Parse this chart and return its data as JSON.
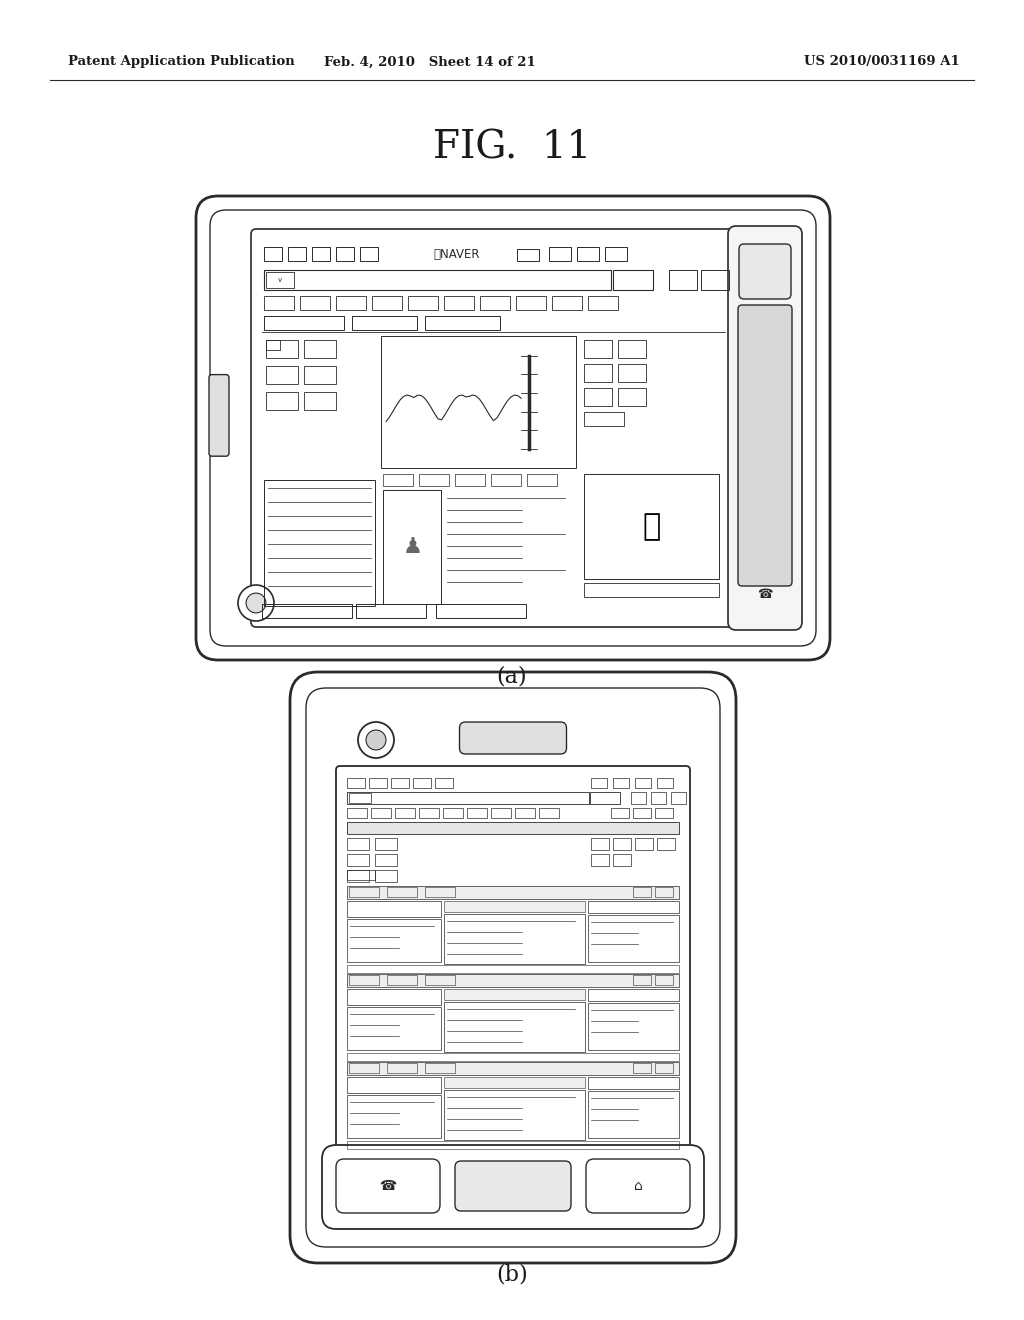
{
  "bg_color": "#ffffff",
  "text_color": "#1a1a1a",
  "line_color": "#2a2a2a",
  "header_left": "Patent Application Publication",
  "header_mid": "Feb. 4, 2010   Sheet 14 of 21",
  "header_right": "US 2010/0031169 A1",
  "fig_title": "FIG.  11",
  "label_a": "(a)",
  "label_b": "(b)"
}
